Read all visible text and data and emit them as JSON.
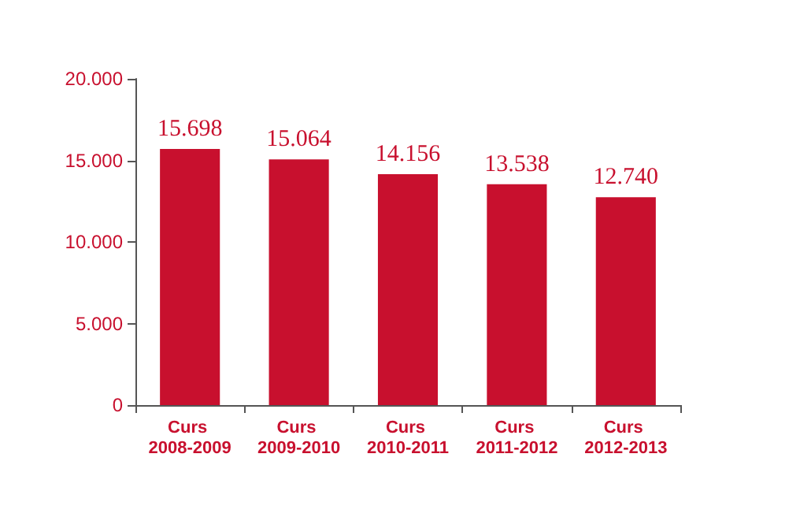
{
  "chart_data": {
    "type": "bar",
    "categories": [
      "Curs 2008-2009",
      "Curs 2009-2010",
      "Curs 2010-2011",
      "Curs 2011-2012",
      "Curs 2012-2013"
    ],
    "values": [
      15698,
      15064,
      14156,
      13538,
      12740
    ],
    "value_labels": [
      "15.698",
      "15.064",
      "14.156",
      "13.538",
      "12.740"
    ],
    "color": "#c8102e",
    "ylim": [
      0,
      20000
    ],
    "yticks": [
      {
        "value": 0,
        "label": "0"
      },
      {
        "value": 5000,
        "label": "5.000"
      },
      {
        "value": 10000,
        "label": "10.000"
      },
      {
        "value": 15000,
        "label": "15.000"
      },
      {
        "value": 20000,
        "label": "20.000"
      }
    ],
    "grid": false
  }
}
